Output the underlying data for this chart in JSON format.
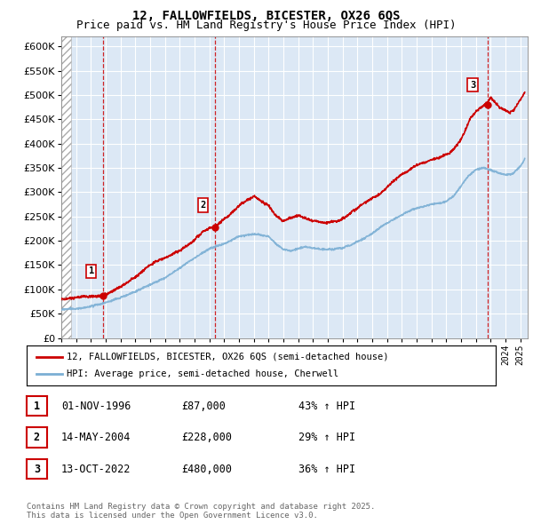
{
  "title": "12, FALLOWFIELDS, BICESTER, OX26 6QS",
  "subtitle": "Price paid vs. HM Land Registry's House Price Index (HPI)",
  "ylim": [
    0,
    620000
  ],
  "yticks": [
    0,
    50000,
    100000,
    150000,
    200000,
    250000,
    300000,
    350000,
    400000,
    450000,
    500000,
    550000,
    600000
  ],
  "xlim_start": 1994.0,
  "xlim_end": 2025.5,
  "sale_dates": [
    1996.833,
    2004.37,
    2022.79
  ],
  "sale_prices": [
    87000,
    228000,
    480000
  ],
  "sale_labels": [
    "1",
    "2",
    "3"
  ],
  "sale_info": [
    {
      "label": "1",
      "date": "01-NOV-1996",
      "price": "£87,000",
      "hpi": "43% ↑ HPI"
    },
    {
      "label": "2",
      "date": "14-MAY-2004",
      "price": "£228,000",
      "hpi": "29% ↑ HPI"
    },
    {
      "label": "3",
      "date": "13-OCT-2022",
      "price": "£480,000",
      "hpi": "36% ↑ HPI"
    }
  ],
  "legend_line1": "12, FALLOWFIELDS, BICESTER, OX26 6QS (semi-detached house)",
  "legend_line2": "HPI: Average price, semi-detached house, Cherwell",
  "footer": "Contains HM Land Registry data © Crown copyright and database right 2025.\nThis data is licensed under the Open Government Licence v3.0.",
  "line_color_red": "#cc0000",
  "line_color_blue": "#7bafd4",
  "background_color": "#dce8f5",
  "grid_color": "#ffffff",
  "vline_color": "#cc0000",
  "title_fontsize": 10,
  "subtitle_fontsize": 9
}
